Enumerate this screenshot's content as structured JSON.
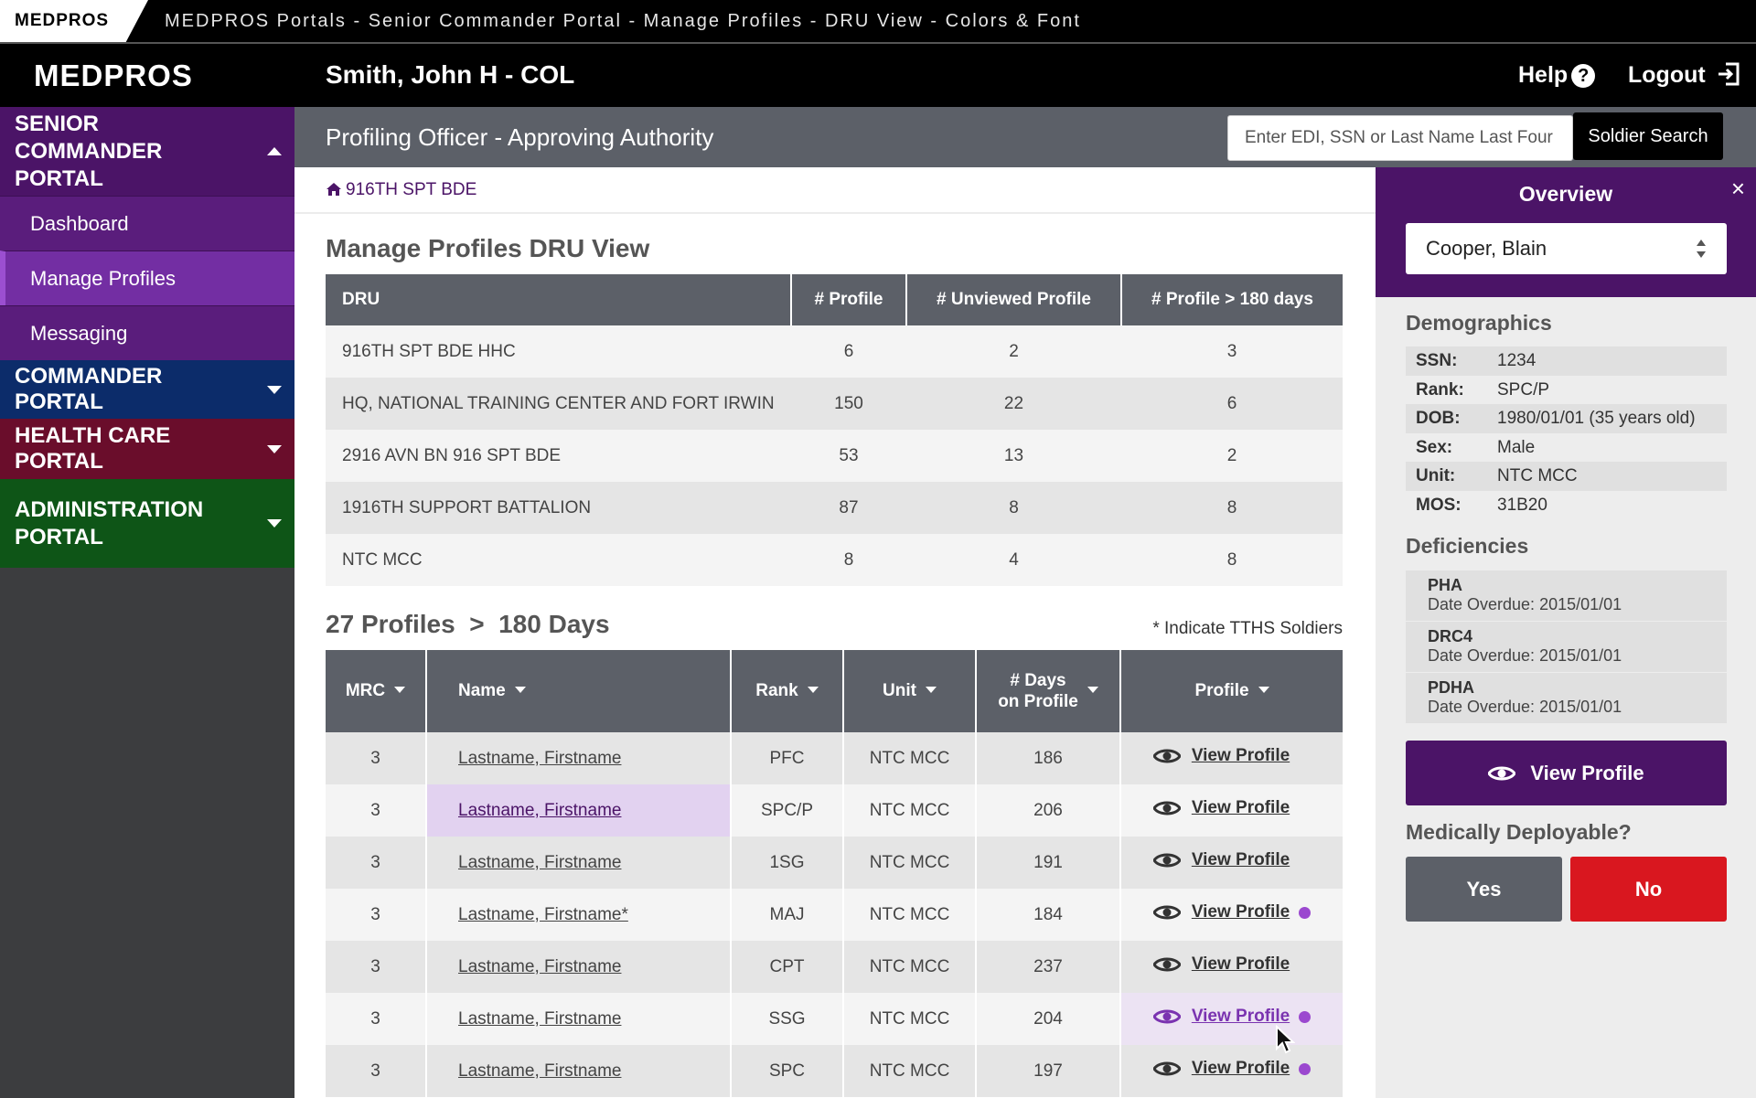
{
  "titlebar": {
    "brand": "MEDPROS",
    "title": "MEDPROS Portals - Senior Commander Portal - Manage Profiles - DRU View - Colors & Font"
  },
  "header": {
    "logo": "MEDPROS",
    "user": "Smith, John H - COL",
    "help": "Help",
    "logout": "Logout"
  },
  "sidebar": {
    "senior": "SENIOR COMMANDER PORTAL",
    "items": [
      "Dashboard",
      "Manage Profiles",
      "Messaging"
    ],
    "active_item": "Manage Profiles",
    "commander": "COMMANDER PORTAL",
    "health": "HEALTH CARE PORTAL",
    "admin": "ADMINISTRATION PORTAL"
  },
  "subheader": {
    "role": "Profiling Officer - Approving Authority",
    "search_placeholder": "Enter EDI, SSN or Last Name Last Four",
    "search_button": "Soldier Search"
  },
  "breadcrumb": "916TH SPT BDE",
  "dru": {
    "title": "Manage Profiles DRU View",
    "headers": [
      "DRU",
      "# Profile",
      "# Unviewed Profile",
      "# Profile > 180 days"
    ],
    "rows": [
      [
        "916TH SPT BDE HHC",
        "6",
        "2",
        "3"
      ],
      [
        "HQ, NATIONAL TRAINING CENTER AND FORT IRWIN",
        "150",
        "22",
        "6"
      ],
      [
        "2916 AVN BN 916 SPT BDE",
        "53",
        "13",
        "2"
      ],
      [
        "1916TH SUPPORT BATTALION",
        "87",
        "8",
        "8"
      ],
      [
        "NTC MCC",
        "8",
        "4",
        "8"
      ]
    ]
  },
  "profiles": {
    "count": "27",
    "title_suffix": "Profiles  >  180 Days",
    "note": "* Indicate TTHS Soldiers",
    "headers": {
      "mrc": "MRC",
      "name": "Name",
      "rank": "Rank",
      "unit": "Unit",
      "days_1": "# Days",
      "days_2": "on Profile",
      "profile": "Profile"
    },
    "link_label": "View Profile",
    "rows": [
      {
        "mrc": "3",
        "name": "Lastname, Firstname",
        "rank": "PFC",
        "unit": "NTC MCC",
        "days": "186",
        "dot": false,
        "highlight": ""
      },
      {
        "mrc": "3",
        "name": "Lastname, Firstname",
        "rank": "SPC/P",
        "unit": "NTC MCC",
        "days": "206",
        "dot": false,
        "highlight": "name"
      },
      {
        "mrc": "3",
        "name": "Lastname, Firstname",
        "rank": "1SG",
        "unit": "NTC MCC",
        "days": "191",
        "dot": false,
        "highlight": ""
      },
      {
        "mrc": "3",
        "name": "Lastname, Firstname*",
        "rank": "MAJ",
        "unit": "NTC MCC",
        "days": "184",
        "dot": true,
        "highlight": ""
      },
      {
        "mrc": "3",
        "name": "Lastname, Firstname",
        "rank": "CPT",
        "unit": "NTC MCC",
        "days": "237",
        "dot": false,
        "highlight": ""
      },
      {
        "mrc": "3",
        "name": "Lastname, Firstname",
        "rank": "SSG",
        "unit": "NTC MCC",
        "days": "204",
        "dot": true,
        "highlight": "profile"
      },
      {
        "mrc": "3",
        "name": "Lastname, Firstname",
        "rank": "SPC",
        "unit": "NTC MCC",
        "days": "197",
        "dot": true,
        "highlight": ""
      }
    ]
  },
  "overview": {
    "title": "Overview",
    "close": "×",
    "selected": "Cooper, Blain",
    "demographics_title": "Demographics",
    "demographics": [
      {
        "k": "SSN:",
        "v": "1234"
      },
      {
        "k": "Rank:",
        "v": "SPC/P"
      },
      {
        "k": "DOB:",
        "v": "1980/01/01 (35 years old)"
      },
      {
        "k": "Sex:",
        "v": "Male"
      },
      {
        "k": "Unit:",
        "v": "NTC MCC"
      },
      {
        "k": "MOS:",
        "v": "31B20"
      }
    ],
    "deficiencies_title": "Deficiencies",
    "deficiencies": [
      {
        "name": "PHA",
        "date": "Date Overdue: 2015/01/01"
      },
      {
        "name": "DRC4",
        "date": "Date Overdue: 2015/01/01"
      },
      {
        "name": "PDHA",
        "date": "Date Overdue: 2015/01/01"
      }
    ],
    "view_profile": "View Profile",
    "medically_deployable": "Medically Deployable?",
    "yes": "Yes",
    "no": "No"
  },
  "colors": {
    "senior_portal": "#4b1467",
    "commander_portal": "#0c2c6a",
    "health_portal": "#6a0d2b",
    "admin_portal": "#0e5517",
    "no_button": "#d9171f",
    "unviewed_dot": "#9b48cf"
  },
  "icons": [
    "home-icon",
    "eye-icon",
    "help-icon",
    "logout-icon",
    "close-icon",
    "select-arrows-icon",
    "caret-up-icon",
    "caret-down-icon",
    "sort-icon",
    "cursor-icon"
  ]
}
